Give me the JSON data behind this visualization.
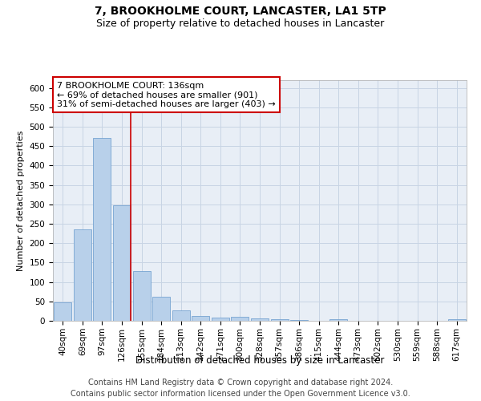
{
  "title": "7, BROOKHOLME COURT, LANCASTER, LA1 5TP",
  "subtitle": "Size of property relative to detached houses in Lancaster",
  "xlabel": "Distribution of detached houses by size in Lancaster",
  "ylabel": "Number of detached properties",
  "categories": [
    "40sqm",
    "69sqm",
    "97sqm",
    "126sqm",
    "155sqm",
    "184sqm",
    "213sqm",
    "242sqm",
    "271sqm",
    "300sqm",
    "328sqm",
    "357sqm",
    "386sqm",
    "415sqm",
    "444sqm",
    "473sqm",
    "502sqm",
    "530sqm",
    "559sqm",
    "588sqm",
    "617sqm"
  ],
  "values": [
    48,
    235,
    472,
    298,
    128,
    62,
    27,
    13,
    8,
    10,
    6,
    4,
    2,
    1,
    5,
    1,
    1,
    0,
    1,
    0,
    4
  ],
  "bar_color": "#b8d0ea",
  "bar_edge_color": "#6699cc",
  "annotation_line1": "7 BROOKHOLME COURT: 136sqm",
  "annotation_line2": "← 69% of detached houses are smaller (901)",
  "annotation_line3": "31% of semi-detached houses are larger (403) →",
  "annotation_box_color": "#ffffff",
  "annotation_box_edge_color": "#cc0000",
  "vline_color": "#cc0000",
  "grid_color": "#c8d4e4",
  "background_color": "#e8eef6",
  "footer_line1": "Contains HM Land Registry data © Crown copyright and database right 2024.",
  "footer_line2": "Contains public sector information licensed under the Open Government Licence v3.0.",
  "ylim": [
    0,
    620
  ],
  "yticks": [
    0,
    50,
    100,
    150,
    200,
    250,
    300,
    350,
    400,
    450,
    500,
    550,
    600
  ],
  "title_fontsize": 10,
  "subtitle_fontsize": 9,
  "xlabel_fontsize": 8.5,
  "ylabel_fontsize": 8,
  "tick_fontsize": 7.5,
  "annotation_fontsize": 8,
  "footer_fontsize": 7
}
